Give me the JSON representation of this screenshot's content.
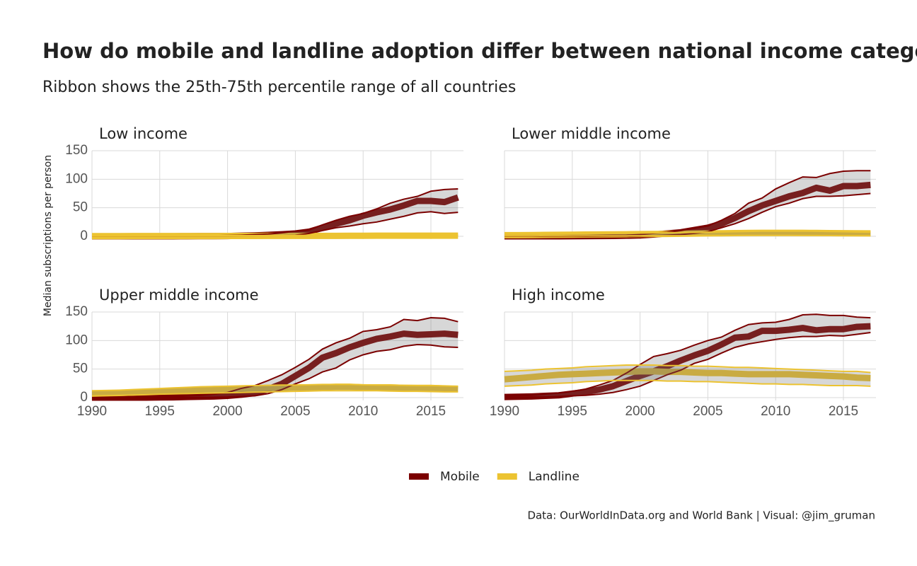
{
  "title": "How do mobile and landline adoption differ between national income categories?",
  "subtitle": "Ribbon shows the 25th-75th percentile range of all countries",
  "y_label": "Median subscriptions per person",
  "caption": "Data: OurWorldInData.org and World Bank | Visual: @jim_gruman",
  "chart_data": [
    {
      "type": "line",
      "title": "Low income",
      "x": [
        1990,
        1991,
        1992,
        1993,
        1994,
        1995,
        1996,
        1997,
        1998,
        1999,
        2000,
        2001,
        2002,
        2003,
        2004,
        2005,
        2006,
        2007,
        2008,
        2009,
        2010,
        2011,
        2012,
        2013,
        2014,
        2015,
        2016,
        2017
      ],
      "xlim": [
        1990,
        2017.4
      ],
      "xticks": [
        1990,
        1995,
        2000,
        2005,
        2010,
        2015
      ],
      "ylim": [
        -5,
        150
      ],
      "yticks": [
        0,
        50,
        100,
        150
      ],
      "grid": true,
      "series": [
        {
          "name": "Mobile",
          "color": "#7b0000",
          "values": [
            0,
            0,
            0,
            0,
            0,
            0,
            0,
            0.1,
            0.2,
            0.3,
            0.5,
            1,
            1.5,
            2.5,
            3.5,
            5,
            8,
            15,
            22,
            28,
            36,
            42,
            47,
            54,
            62,
            62,
            60,
            68
          ],
          "lower": [
            0,
            0,
            0,
            0,
            0,
            0,
            0,
            0,
            0,
            0,
            0,
            0.2,
            0.4,
            0.8,
            1.2,
            2,
            5,
            10,
            15,
            18,
            22,
            25,
            30,
            35,
            41,
            43,
            40,
            42
          ],
          "upper": [
            0,
            0,
            0,
            0,
            0,
            0.2,
            0.3,
            0.5,
            0.7,
            1,
            1.5,
            2,
            3,
            4,
            6,
            9,
            11,
            20,
            28,
            35,
            40,
            48,
            58,
            65,
            70,
            79,
            82,
            83
          ]
        },
        {
          "name": "Landline",
          "color": "#ecc331",
          "values": [
            0.3,
            0.3,
            0.3,
            0.4,
            0.4,
            0.4,
            0.4,
            0.5,
            0.5,
            0.5,
            0.6,
            0.6,
            0.6,
            0.7,
            0.7,
            0.7,
            0.8,
            0.8,
            0.8,
            0.9,
            0.9,
            1,
            1,
            1,
            1,
            1,
            1,
            1
          ],
          "lower": [
            0.1,
            0.1,
            0.1,
            0.1,
            0.1,
            0.1,
            0.1,
            0.1,
            0.1,
            0.1,
            0.1,
            0.1,
            0.1,
            0.1,
            0.1,
            0.1,
            0.1,
            0.1,
            0.1,
            0.1,
            0.1,
            0.1,
            0.1,
            0.1,
            0.1,
            0.1,
            0.1,
            0.1
          ],
          "upper": [
            1,
            1,
            1,
            1,
            1,
            1.1,
            1.1,
            1.2,
            1.2,
            1.3,
            1.3,
            1.4,
            1.4,
            1.5,
            1.5,
            1.6,
            1.7,
            1.8,
            1.9,
            2,
            2,
            2.1,
            2.2,
            2.2,
            2.3,
            2.3,
            2.4,
            2.4
          ]
        }
      ]
    },
    {
      "type": "line",
      "title": "Lower middle income",
      "x": [
        1990,
        1991,
        1992,
        1993,
        1994,
        1995,
        1996,
        1997,
        1998,
        1999,
        2000,
        2001,
        2002,
        2003,
        2004,
        2005,
        2006,
        2007,
        2008,
        2009,
        2010,
        2011,
        2012,
        2013,
        2014,
        2015,
        2016,
        2017
      ],
      "xlim": [
        1990,
        2017.4
      ],
      "xticks": [
        1990,
        1995,
        2000,
        2005,
        2010,
        2015
      ],
      "ylim": [
        -5,
        150
      ],
      "yticks": [
        0,
        50,
        100,
        150
      ],
      "grid": true,
      "series": [
        {
          "name": "Mobile",
          "color": "#7b0000",
          "values": [
            0,
            0,
            0,
            0,
            0,
            0.1,
            0.2,
            0.4,
            0.6,
            1,
            1.5,
            3,
            5,
            7,
            11,
            15,
            22,
            32,
            44,
            54,
            62,
            70,
            76,
            85,
            80,
            88,
            88,
            90
          ],
          "lower": [
            0,
            0,
            0,
            0,
            0,
            0,
            0,
            0.1,
            0.2,
            0.3,
            0.5,
            1,
            2,
            3,
            5,
            8,
            15,
            22,
            31,
            42,
            52,
            58,
            66,
            70,
            70,
            71,
            73,
            75
          ],
          "upper": [
            0.5,
            0.5,
            0.6,
            0.7,
            0.8,
            1,
            1.2,
            1.5,
            1.8,
            2,
            3,
            5,
            7,
            10,
            14,
            18,
            28,
            40,
            58,
            67,
            83,
            94,
            104,
            103,
            110,
            114,
            115,
            115
          ]
        },
        {
          "name": "Landline",
          "color": "#ecc331",
          "values": [
            2,
            2,
            2.2,
            2.4,
            2.6,
            2.8,
            3,
            3.2,
            3.4,
            3.6,
            3.8,
            4,
            4.2,
            4.4,
            4.7,
            5,
            5.3,
            5.6,
            5.8,
            6,
            6,
            6,
            6,
            5.8,
            5.6,
            5.4,
            5.2,
            5
          ],
          "lower": [
            0.5,
            0.5,
            0.5,
            0.6,
            0.6,
            0.6,
            0.7,
            0.7,
            0.8,
            0.8,
            0.9,
            1,
            1,
            1.1,
            1.2,
            1.3,
            1.4,
            1.5,
            1.5,
            1.5,
            1.5,
            1.5,
            1.4,
            1.3,
            1.2,
            1.1,
            1,
            1
          ],
          "upper": [
            3,
            3.2,
            3.4,
            3.6,
            3.8,
            4,
            4.3,
            4.6,
            4.9,
            5.2,
            5.5,
            5.8,
            6.1,
            6.4,
            6.8,
            7.2,
            7.6,
            8,
            8.5,
            9,
            9,
            9,
            9,
            8.8,
            8.4,
            8,
            7.6,
            7.2
          ]
        }
      ]
    },
    {
      "type": "line",
      "title": "Upper middle income",
      "x": [
        1990,
        1991,
        1992,
        1993,
        1994,
        1995,
        1996,
        1997,
        1998,
        1999,
        2000,
        2001,
        2002,
        2003,
        2004,
        2005,
        2006,
        2007,
        2008,
        2009,
        2010,
        2011,
        2012,
        2013,
        2014,
        2015,
        2016,
        2017
      ],
      "xlim": [
        1990,
        2017.4
      ],
      "xticks": [
        1990,
        1995,
        2000,
        2005,
        2010,
        2015
      ],
      "ylim": [
        -5,
        150
      ],
      "yticks": [
        0,
        50,
        100,
        150
      ],
      "grid": true,
      "series": [
        {
          "name": "Mobile",
          "color": "#7b0000",
          "values": [
            0,
            0,
            0,
            0,
            0,
            0.2,
            0.5,
            1,
            1.5,
            2,
            3,
            5,
            8,
            15,
            24,
            38,
            52,
            70,
            78,
            88,
            96,
            103,
            107,
            112,
            110,
            111,
            112,
            110
          ],
          "lower": [
            0,
            0,
            0,
            0,
            0,
            0,
            0.1,
            0.2,
            0.4,
            0.6,
            1,
            2,
            3,
            7,
            14,
            24,
            33,
            45,
            52,
            66,
            75,
            81,
            84,
            90,
            93,
            92,
            89,
            88
          ],
          "upper": [
            0,
            0,
            0,
            0,
            0.3,
            0.8,
            1.5,
            3,
            4,
            6,
            9,
            16,
            21,
            30,
            40,
            53,
            67,
            85,
            96,
            104,
            116,
            119,
            124,
            137,
            135,
            140,
            139,
            133
          ]
        },
        {
          "name": "Landline",
          "color": "#ecc331",
          "values": [
            7,
            7.5,
            8,
            9,
            10,
            11,
            12,
            13,
            14,
            15,
            15,
            16,
            16,
            17,
            17,
            18,
            18,
            18,
            19,
            19,
            18,
            18,
            18,
            17,
            17,
            17,
            16,
            15
          ],
          "lower": [
            3,
            3.5,
            4,
            4.5,
            5,
            6,
            6.5,
            7,
            7.5,
            8,
            8.5,
            9,
            9.5,
            10,
            10.5,
            11,
            11.5,
            12,
            12,
            12,
            12,
            12,
            11.5,
            11,
            11,
            10.5,
            10,
            10
          ],
          "upper": [
            12,
            12.5,
            13,
            14,
            15,
            16,
            17,
            18,
            19,
            19.5,
            20,
            20.5,
            21,
            21.5,
            22,
            22,
            22.5,
            23,
            23,
            23,
            22.5,
            22,
            22,
            21.5,
            21,
            21,
            20.5,
            20
          ]
        }
      ]
    },
    {
      "type": "line",
      "title": "High income",
      "x": [
        1990,
        1991,
        1992,
        1993,
        1994,
        1995,
        1996,
        1997,
        1998,
        1999,
        2000,
        2001,
        2002,
        2003,
        2004,
        2005,
        2006,
        2007,
        2008,
        2009,
        2010,
        2011,
        2012,
        2013,
        2014,
        2015,
        2016,
        2017
      ],
      "xlim": [
        1990,
        2017.4
      ],
      "xticks": [
        1990,
        1995,
        2000,
        2005,
        2010,
        2015
      ],
      "ylim": [
        -5,
        150
      ],
      "yticks": [
        0,
        50,
        100,
        150
      ],
      "grid": true,
      "series": [
        {
          "name": "Mobile",
          "color": "#7b0000",
          "values": [
            1,
            1.5,
            2,
            3,
            4,
            7,
            10,
            14,
            20,
            29,
            38,
            46,
            55,
            65,
            74,
            82,
            93,
            105,
            107,
            117,
            117,
            119,
            122,
            118,
            120,
            120,
            124,
            125
          ],
          "lower": [
            0,
            0.5,
            1,
            1,
            2,
            3,
            4,
            6,
            9,
            14,
            20,
            30,
            40,
            48,
            60,
            67,
            78,
            88,
            94,
            98,
            102,
            105,
            107,
            107,
            109,
            108,
            111,
            114
          ],
          "upper": [
            2,
            3,
            4,
            6,
            8,
            11,
            15,
            22,
            30,
            43,
            58,
            72,
            77,
            83,
            92,
            100,
            106,
            118,
            128,
            131,
            132,
            137,
            145,
            146,
            144,
            144,
            141,
            140
          ]
        },
        {
          "name": "Landline",
          "color": "#ecc331",
          "values": [
            32,
            34,
            36,
            38,
            40,
            41,
            42,
            43,
            44,
            45,
            46,
            46,
            45,
            45,
            44,
            43,
            43,
            42,
            41,
            41,
            41,
            41,
            40,
            39,
            38,
            37,
            35,
            34
          ],
          "lower": [
            20,
            21,
            22,
            24,
            25,
            26,
            28,
            29,
            30,
            30,
            30,
            30,
            29,
            29,
            28,
            28,
            27,
            26,
            25,
            24,
            24,
            23,
            23,
            22,
            21,
            21,
            21,
            20
          ],
          "upper": [
            46,
            47,
            48,
            50,
            51,
            52,
            54,
            55,
            56,
            57,
            57,
            57,
            56,
            56,
            55,
            55,
            54,
            53,
            53,
            52,
            51,
            50,
            49,
            48,
            47,
            46,
            46,
            44
          ]
        }
      ]
    }
  ]
}
